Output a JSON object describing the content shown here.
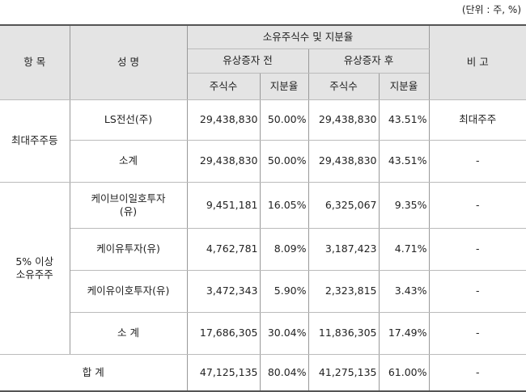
{
  "unit_label": "(단위 : 주, %)",
  "headers": {
    "item": "항 목",
    "name": "성 명",
    "ownership": "소유주식수 및 지분율",
    "before": "유상증자 전",
    "after": "유상증자 후",
    "remarks": "비 고",
    "shares": "주식수",
    "ratio": "지분율"
  },
  "groups": {
    "largest": "최대주주등",
    "five_percent": "5% 이상\n소유주주",
    "total": "합 계"
  },
  "rows": [
    {
      "name": "LS전선(주)",
      "before_shares": "29,438,830",
      "before_ratio": "50.00%",
      "after_shares": "29,438,830",
      "after_ratio": "43.51%",
      "remark": "최대주주"
    },
    {
      "name": "소계",
      "before_shares": "29,438,830",
      "before_ratio": "50.00%",
      "after_shares": "29,438,830",
      "after_ratio": "43.51%",
      "remark": "-"
    },
    {
      "name": "케이브이일호투자\n(유)",
      "before_shares": "9,451,181",
      "before_ratio": "16.05%",
      "after_shares": "6,325,067",
      "after_ratio": "9.35%",
      "remark": "-"
    },
    {
      "name": "케이유투자(유)",
      "before_shares": "4,762,781",
      "before_ratio": "8.09%",
      "after_shares": "3,187,423",
      "after_ratio": "4.71%",
      "remark": "-"
    },
    {
      "name": "케이유이호투자(유)",
      "before_shares": "3,472,343",
      "before_ratio": "5.90%",
      "after_shares": "2,323,815",
      "after_ratio": "3.43%",
      "remark": "-"
    },
    {
      "name": "소 계",
      "before_shares": "17,686,305",
      "before_ratio": "30.04%",
      "after_shares": "11,836,305",
      "after_ratio": "17.49%",
      "remark": "-"
    }
  ],
  "total": {
    "before_shares": "47,125,135",
    "before_ratio": "80.04%",
    "after_shares": "41,275,135",
    "after_ratio": "61.00%",
    "remark": "-"
  }
}
